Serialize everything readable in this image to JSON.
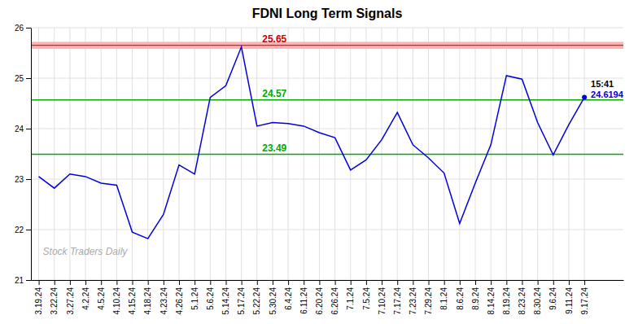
{
  "chart_data": {
    "type": "line",
    "title": "FDNI Long Term Signals",
    "categories": [
      "3.19.24",
      "3.22.24",
      "3.27.24",
      "4.2.24",
      "4.5.24",
      "4.10.24",
      "4.15.24",
      "4.18.24",
      "4.23.24",
      "4.26.24",
      "5.1.24",
      "5.6.24",
      "5.14.24",
      "5.17.24",
      "5.22.24",
      "5.30.24",
      "6.4.24",
      "6.11.24",
      "6.20.24",
      "6.26.24",
      "7.1.24",
      "7.5.24",
      "7.10.24",
      "7.17.24",
      "7.23.24",
      "7.29.24",
      "8.1.24",
      "8.6.24",
      "8.9.24",
      "8.14.24",
      "8.19.24",
      "8.23.24",
      "8.30.24",
      "9.6.24",
      "9.11.24",
      "9.17.24"
    ],
    "values": [
      23.05,
      22.82,
      23.1,
      23.05,
      22.92,
      22.88,
      21.95,
      21.82,
      22.3,
      23.28,
      23.1,
      24.62,
      24.85,
      25.62,
      24.05,
      24.12,
      24.1,
      24.05,
      23.92,
      23.82,
      23.18,
      23.38,
      23.78,
      24.32,
      23.68,
      23.42,
      23.12,
      22.12,
      22.92,
      23.68,
      25.05,
      24.98,
      24.12,
      23.48,
      24.08,
      24.6194
    ],
    "color": "#0000dd",
    "ylim": [
      21,
      26
    ],
    "yticks": [
      21,
      22,
      23,
      24,
      25,
      26
    ],
    "grid": true,
    "band": {
      "bottom": 25.58,
      "top": 25.72,
      "color": "#ffb3b3"
    },
    "reference_lines": [
      {
        "value": 25.65,
        "color": "#cc0000"
      },
      {
        "value": 24.57,
        "color": "#00aa00"
      },
      {
        "value": 23.49,
        "color": "#00aa00"
      }
    ],
    "watermark": "Stock Traders Daily",
    "last_time": "15:41",
    "last_value_label": "24.6194"
  }
}
